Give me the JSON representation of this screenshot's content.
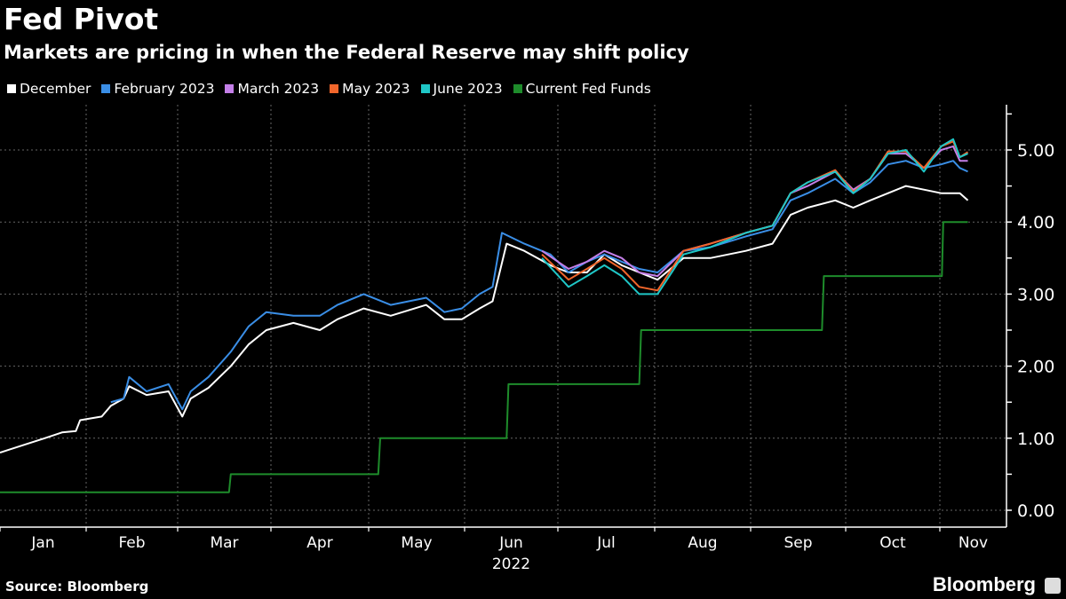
{
  "header": {
    "title": "Fed Pivot",
    "subtitle": "Markets are pricing in when the Federal Reserve may shift policy"
  },
  "footer": {
    "source": "Source: Bloomberg",
    "brand": "Bloomberg",
    "brand_icon": "bloomberg-chart-icon"
  },
  "chart_data": {
    "type": "line",
    "title": "Fed Pivot",
    "subtitle": "Markets are pricing in when the Federal Reserve may shift policy",
    "x_unit": "months since Jan 1 2022",
    "x_ticks": [
      "Jan",
      "Feb",
      "Mar",
      "Apr",
      "May",
      "Jun",
      "Jul",
      "Aug",
      "Sep",
      "Oct",
      "Nov"
    ],
    "x_year_label": "2022",
    "y_ticks": [
      "0.00",
      "1.00",
      "2.00",
      "3.00",
      "4.00",
      "5.00"
    ],
    "ylim": [
      -0.2,
      5.6
    ],
    "grid": true,
    "legend_position": "top-left",
    "series": [
      {
        "name": "December",
        "color": "#ffffff",
        "points": [
          [
            0,
            0.8
          ],
          [
            0.31,
            0.92
          ],
          [
            0.52,
            1.0
          ],
          [
            0.72,
            1.08
          ],
          [
            0.88,
            1.1
          ],
          [
            0.93,
            1.25
          ],
          [
            1.17,
            1.3
          ],
          [
            1.27,
            1.45
          ],
          [
            1.41,
            1.55
          ],
          [
            1.47,
            1.72
          ],
          [
            1.66,
            1.6
          ],
          [
            1.9,
            1.65
          ],
          [
            2.05,
            1.3
          ],
          [
            2.14,
            1.55
          ],
          [
            2.33,
            1.7
          ],
          [
            2.57,
            2.0
          ],
          [
            2.76,
            2.3
          ],
          [
            2.95,
            2.5
          ],
          [
            3.23,
            2.6
          ],
          [
            3.5,
            2.5
          ],
          [
            3.68,
            2.65
          ],
          [
            3.95,
            2.8
          ],
          [
            4.23,
            2.7
          ],
          [
            4.6,
            2.85
          ],
          [
            4.79,
            2.65
          ],
          [
            4.97,
            2.65
          ],
          [
            5.16,
            2.8
          ],
          [
            5.3,
            2.9
          ],
          [
            5.45,
            3.7
          ],
          [
            5.64,
            3.6
          ],
          [
            5.92,
            3.4
          ],
          [
            6.11,
            3.3
          ],
          [
            6.3,
            3.3
          ],
          [
            6.48,
            3.55
          ],
          [
            6.66,
            3.4
          ],
          [
            6.84,
            3.3
          ],
          [
            7.03,
            3.2
          ],
          [
            7.3,
            3.5
          ],
          [
            7.58,
            3.5
          ],
          [
            7.95,
            3.6
          ],
          [
            8.23,
            3.7
          ],
          [
            8.42,
            4.1
          ],
          [
            8.6,
            4.2
          ],
          [
            8.89,
            4.3
          ],
          [
            9.08,
            4.2
          ],
          [
            9.26,
            4.3
          ],
          [
            9.45,
            4.4
          ],
          [
            9.64,
            4.5
          ],
          [
            9.83,
            4.45
          ],
          [
            10.02,
            4.4
          ],
          [
            10.3,
            4.4
          ],
          [
            10.42,
            4.3
          ]
        ]
      },
      {
        "name": "February 2023",
        "color": "#3a8ee6",
        "points": [
          [
            1.27,
            1.5
          ],
          [
            1.41,
            1.55
          ],
          [
            1.47,
            1.85
          ],
          [
            1.66,
            1.65
          ],
          [
            1.9,
            1.75
          ],
          [
            2.05,
            1.4
          ],
          [
            2.14,
            1.65
          ],
          [
            2.33,
            1.85
          ],
          [
            2.57,
            2.2
          ],
          [
            2.76,
            2.55
          ],
          [
            2.95,
            2.75
          ],
          [
            3.23,
            2.7
          ],
          [
            3.5,
            2.7
          ],
          [
            3.68,
            2.85
          ],
          [
            3.95,
            3.0
          ],
          [
            4.23,
            2.85
          ],
          [
            4.6,
            2.95
          ],
          [
            4.79,
            2.75
          ],
          [
            4.97,
            2.8
          ],
          [
            5.16,
            3.0
          ],
          [
            5.3,
            3.1
          ],
          [
            5.4,
            3.85
          ],
          [
            5.64,
            3.7
          ],
          [
            5.92,
            3.55
          ],
          [
            6.11,
            3.3
          ],
          [
            6.3,
            3.45
          ],
          [
            6.48,
            3.55
          ],
          [
            6.66,
            3.45
          ],
          [
            6.84,
            3.35
          ],
          [
            7.03,
            3.3
          ],
          [
            7.3,
            3.6
          ],
          [
            7.58,
            3.65
          ],
          [
            7.95,
            3.8
          ],
          [
            8.23,
            3.9
          ],
          [
            8.42,
            4.3
          ],
          [
            8.6,
            4.4
          ],
          [
            8.89,
            4.6
          ],
          [
            9.08,
            4.4
          ],
          [
            9.26,
            4.55
          ],
          [
            9.45,
            4.8
          ],
          [
            9.64,
            4.85
          ],
          [
            9.83,
            4.75
          ],
          [
            10.02,
            4.8
          ],
          [
            10.2,
            4.85
          ],
          [
            10.3,
            4.75
          ],
          [
            10.42,
            4.7
          ]
        ]
      },
      {
        "name": "March 2023",
        "color": "#c47fe8",
        "points": [
          [
            5.83,
            3.6
          ],
          [
            6.11,
            3.35
          ],
          [
            6.3,
            3.45
          ],
          [
            6.48,
            3.6
          ],
          [
            6.66,
            3.5
          ],
          [
            6.84,
            3.3
          ],
          [
            7.03,
            3.25
          ],
          [
            7.3,
            3.6
          ],
          [
            7.58,
            3.7
          ],
          [
            7.95,
            3.85
          ],
          [
            8.23,
            3.95
          ],
          [
            8.42,
            4.4
          ],
          [
            8.6,
            4.5
          ],
          [
            8.89,
            4.7
          ],
          [
            9.08,
            4.45
          ],
          [
            9.26,
            4.6
          ],
          [
            9.45,
            4.95
          ],
          [
            9.64,
            4.95
          ],
          [
            9.83,
            4.75
          ],
          [
            10.02,
            5.0
          ],
          [
            10.2,
            5.05
          ],
          [
            10.3,
            4.85
          ],
          [
            10.42,
            4.85
          ]
        ]
      },
      {
        "name": "May 2023",
        "color": "#f2662b",
        "points": [
          [
            5.83,
            3.55
          ],
          [
            6.11,
            3.2
          ],
          [
            6.3,
            3.35
          ],
          [
            6.48,
            3.5
          ],
          [
            6.66,
            3.35
          ],
          [
            6.84,
            3.1
          ],
          [
            7.03,
            3.05
          ],
          [
            7.3,
            3.6
          ],
          [
            7.58,
            3.7
          ],
          [
            7.95,
            3.85
          ],
          [
            8.23,
            3.95
          ],
          [
            8.42,
            4.4
          ],
          [
            8.6,
            4.55
          ],
          [
            8.89,
            4.72
          ],
          [
            9.08,
            4.42
          ],
          [
            9.26,
            4.6
          ],
          [
            9.45,
            4.98
          ],
          [
            9.64,
            4.98
          ],
          [
            9.83,
            4.75
          ],
          [
            10.02,
            5.05
          ],
          [
            10.2,
            5.12
          ],
          [
            10.3,
            4.9
          ],
          [
            10.42,
            4.97
          ]
        ]
      },
      {
        "name": "June 2023",
        "color": "#1fc7c7",
        "points": [
          [
            5.83,
            3.5
          ],
          [
            6.11,
            3.1
          ],
          [
            6.3,
            3.25
          ],
          [
            6.48,
            3.4
          ],
          [
            6.66,
            3.25
          ],
          [
            6.84,
            3.0
          ],
          [
            7.03,
            3.0
          ],
          [
            7.3,
            3.55
          ],
          [
            7.58,
            3.65
          ],
          [
            7.95,
            3.85
          ],
          [
            8.23,
            3.95
          ],
          [
            8.42,
            4.4
          ],
          [
            8.6,
            4.55
          ],
          [
            8.89,
            4.7
          ],
          [
            9.08,
            4.4
          ],
          [
            9.26,
            4.6
          ],
          [
            9.45,
            4.95
          ],
          [
            9.64,
            5.0
          ],
          [
            9.83,
            4.7
          ],
          [
            10.02,
            5.05
          ],
          [
            10.2,
            5.15
          ],
          [
            10.3,
            4.9
          ],
          [
            10.42,
            4.95
          ]
        ]
      },
      {
        "name": "Current Fed Funds",
        "color": "#1e8c2b",
        "points": [
          [
            0,
            0.25
          ],
          [
            2.55,
            0.25
          ],
          [
            2.57,
            0.5
          ],
          [
            4.1,
            0.5
          ],
          [
            4.12,
            1.0
          ],
          [
            5.45,
            1.0
          ],
          [
            5.47,
            1.75
          ],
          [
            6.84,
            1.75
          ],
          [
            6.86,
            2.5
          ],
          [
            8.75,
            2.5
          ],
          [
            8.77,
            3.25
          ],
          [
            10.03,
            3.25
          ],
          [
            10.05,
            4.0
          ],
          [
            10.42,
            4.0
          ]
        ]
      }
    ]
  }
}
